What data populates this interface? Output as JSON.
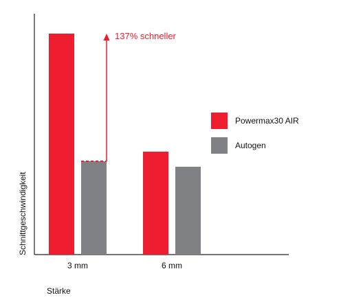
{
  "chart_data": {
    "type": "bar",
    "categories": [
      "3 mm",
      "6 mm"
    ],
    "series": [
      {
        "name": "Powermax30 AIR",
        "values": [
          322,
          150
        ],
        "color": "#ed1c2e"
      },
      {
        "name": "Autogen",
        "values": [
          136,
          128
        ],
        "color": "#808184"
      }
    ],
    "xlabel": "Stärke",
    "ylabel": "Schnittgeschwindigkeit",
    "ylim": [
      0,
      350
    ],
    "grid": false,
    "legend": "right",
    "annotation": {
      "text": "137% schneller",
      "color": "#ed1c2e"
    }
  }
}
